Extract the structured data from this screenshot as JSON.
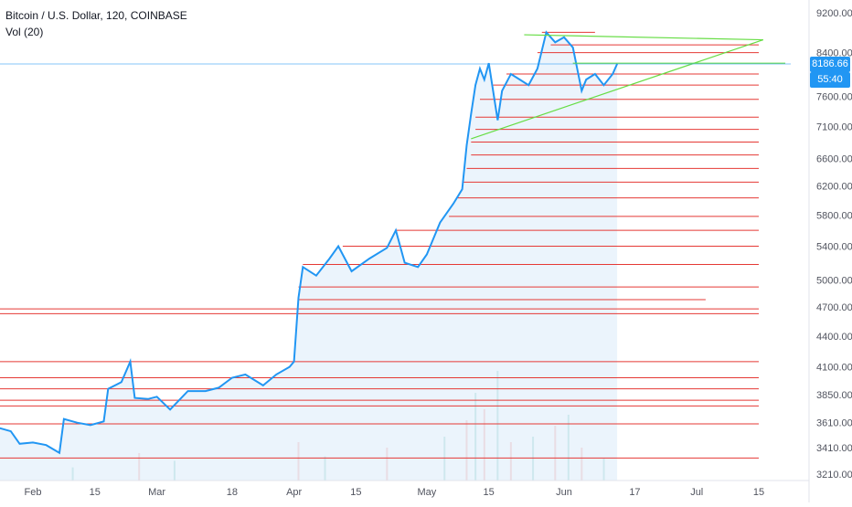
{
  "legend": {
    "title": "Bitcoin / U.S. Dollar, 120, COINBASE",
    "indicator": "Vol (20)"
  },
  "badges": {
    "last_price": "8186.66",
    "countdown": "55:40"
  },
  "colors": {
    "price_line": "#2196f3",
    "area_fill": "#e3f0fb",
    "resistance": "#e53935",
    "trendline": "#66dd44",
    "volume_up": "#26a69a",
    "volume_down": "#ef5350",
    "badge_bg": "#2196f3",
    "axis_text": "#50535e"
  },
  "chart_data": {
    "type": "line",
    "title": "Bitcoin / U.S. Dollar, 120, COINBASE",
    "xlabel": "",
    "ylabel": "",
    "y_scale": "log",
    "ylim": [
      3160,
      9600
    ],
    "y_ticks": [
      3210,
      3410,
      3610,
      3850,
      4100,
      4400,
      4700,
      5000,
      5400,
      5800,
      6200,
      6600,
      7100,
      7600,
      8400,
      9200
    ],
    "x_tick_labels": [
      {
        "label": "Feb",
        "date": "2019-02-01"
      },
      {
        "label": "15",
        "date": "2019-02-15"
      },
      {
        "label": "Mar",
        "date": "2019-03-01"
      },
      {
        "label": "18",
        "date": "2019-03-18"
      },
      {
        "label": "Apr",
        "date": "2019-04-01"
      },
      {
        "label": "15",
        "date": "2019-04-15"
      },
      {
        "label": "May",
        "date": "2019-05-01"
      },
      {
        "label": "15",
        "date": "2019-05-15"
      },
      {
        "label": "Jun",
        "date": "2019-06-01"
      },
      {
        "label": "17",
        "date": "2019-06-17"
      },
      {
        "label": "Jul",
        "date": "2019-07-01"
      },
      {
        "label": "15",
        "date": "2019-07-15"
      }
    ],
    "xlim": [
      "2019-01-21",
      "2019-07-25"
    ],
    "series": [
      {
        "values": [
          {
            "x": "2019-01-21",
            "y": 3610
          },
          {
            "x": "2019-01-24",
            "y": 3570
          },
          {
            "x": "2019-01-27",
            "y": 3540
          },
          {
            "x": "2019-01-29",
            "y": 3440
          },
          {
            "x": "2019-02-01",
            "y": 3450
          },
          {
            "x": "2019-02-04",
            "y": 3430
          },
          {
            "x": "2019-02-07",
            "y": 3370
          },
          {
            "x": "2019-02-08",
            "y": 3640
          },
          {
            "x": "2019-02-11",
            "y": 3610
          },
          {
            "x": "2019-02-14",
            "y": 3590
          },
          {
            "x": "2019-02-17",
            "y": 3620
          },
          {
            "x": "2019-02-18",
            "y": 3900
          },
          {
            "x": "2019-02-21",
            "y": 3960
          },
          {
            "x": "2019-02-23",
            "y": 4150
          },
          {
            "x": "2019-02-24",
            "y": 3820
          },
          {
            "x": "2019-02-27",
            "y": 3810
          },
          {
            "x": "2019-03-01",
            "y": 3830
          },
          {
            "x": "2019-03-04",
            "y": 3720
          },
          {
            "x": "2019-03-08",
            "y": 3880
          },
          {
            "x": "2019-03-12",
            "y": 3880
          },
          {
            "x": "2019-03-15",
            "y": 3910
          },
          {
            "x": "2019-03-18",
            "y": 4000
          },
          {
            "x": "2019-03-21",
            "y": 4030
          },
          {
            "x": "2019-03-25",
            "y": 3930
          },
          {
            "x": "2019-03-28",
            "y": 4030
          },
          {
            "x": "2019-03-31",
            "y": 4100
          },
          {
            "x": "2019-04-01",
            "y": 4150
          },
          {
            "x": "2019-04-02",
            "y": 4800
          },
          {
            "x": "2019-04-03",
            "y": 5150
          },
          {
            "x": "2019-04-06",
            "y": 5050
          },
          {
            "x": "2019-04-09",
            "y": 5250
          },
          {
            "x": "2019-04-11",
            "y": 5400
          },
          {
            "x": "2019-04-14",
            "y": 5100
          },
          {
            "x": "2019-04-18",
            "y": 5250
          },
          {
            "x": "2019-04-22",
            "y": 5380
          },
          {
            "x": "2019-04-24",
            "y": 5600
          },
          {
            "x": "2019-04-26",
            "y": 5200
          },
          {
            "x": "2019-04-29",
            "y": 5150
          },
          {
            "x": "2019-05-01",
            "y": 5300
          },
          {
            "x": "2019-05-04",
            "y": 5700
          },
          {
            "x": "2019-05-07",
            "y": 5950
          },
          {
            "x": "2019-05-09",
            "y": 6150
          },
          {
            "x": "2019-05-10",
            "y": 6800
          },
          {
            "x": "2019-05-11",
            "y": 7300
          },
          {
            "x": "2019-05-12",
            "y": 7800
          },
          {
            "x": "2019-05-13",
            "y": 8100
          },
          {
            "x": "2019-05-14",
            "y": 7900
          },
          {
            "x": "2019-05-15",
            "y": 8200
          },
          {
            "x": "2019-05-17",
            "y": 7200
          },
          {
            "x": "2019-05-18",
            "y": 7700
          },
          {
            "x": "2019-05-20",
            "y": 8000
          },
          {
            "x": "2019-05-22",
            "y": 7900
          },
          {
            "x": "2019-05-24",
            "y": 7800
          },
          {
            "x": "2019-05-26",
            "y": 8100
          },
          {
            "x": "2019-05-28",
            "y": 8800
          },
          {
            "x": "2019-05-30",
            "y": 8600
          },
          {
            "x": "2019-06-01",
            "y": 8700
          },
          {
            "x": "2019-06-03",
            "y": 8500
          },
          {
            "x": "2019-06-05",
            "y": 7700
          },
          {
            "x": "2019-06-06",
            "y": 7900
          },
          {
            "x": "2019-06-08",
            "y": 8000
          },
          {
            "x": "2019-06-10",
            "y": 7800
          },
          {
            "x": "2019-06-12",
            "y": 8000
          },
          {
            "x": "2019-06-13",
            "y": 8187
          }
        ]
      }
    ],
    "horizontal_levels": [
      {
        "y": 8800,
        "x_start": "2019-05-27",
        "x_end": "2019-06-08"
      },
      {
        "y": 8550,
        "x_start": "2019-05-29",
        "x_end": "2019-07-15"
      },
      {
        "y": 8400,
        "x_start": "2019-05-26",
        "x_end": "2019-07-15"
      },
      {
        "y": 8000,
        "x_start": "2019-05-19",
        "x_end": "2019-07-15"
      },
      {
        "y": 7800,
        "x_start": "2019-05-16",
        "x_end": "2019-07-15"
      },
      {
        "y": 7550,
        "x_start": "2019-05-13",
        "x_end": "2019-07-15"
      },
      {
        "y": 7250,
        "x_start": "2019-05-12",
        "x_end": "2019-07-15"
      },
      {
        "y": 7050,
        "x_start": "2019-05-12",
        "x_end": "2019-07-15"
      },
      {
        "y": 6850,
        "x_start": "2019-05-11",
        "x_end": "2019-07-15"
      },
      {
        "y": 6650,
        "x_start": "2019-05-11",
        "x_end": "2019-07-15"
      },
      {
        "y": 6450,
        "x_start": "2019-05-10",
        "x_end": "2019-07-15"
      },
      {
        "y": 6250,
        "x_start": "2019-05-09",
        "x_end": "2019-07-15"
      },
      {
        "y": 6030,
        "x_start": "2019-05-08",
        "x_end": "2019-07-15"
      },
      {
        "y": 5780,
        "x_start": "2019-05-06",
        "x_end": "2019-07-15"
      },
      {
        "y": 5600,
        "x_start": "2019-04-24",
        "x_end": "2019-07-15"
      },
      {
        "y": 5400,
        "x_start": "2019-04-12",
        "x_end": "2019-07-15"
      },
      {
        "y": 5180,
        "x_start": "2019-04-03",
        "x_end": "2019-07-15"
      },
      {
        "y": 4920,
        "x_start": "2019-04-02",
        "x_end": "2019-07-15"
      },
      {
        "y": 4780,
        "x_start": "2019-04-02",
        "x_end": "2019-07-03"
      },
      {
        "y": 4680,
        "x_start": "2019-01-21",
        "x_end": "2019-07-15"
      },
      {
        "y": 4630,
        "x_start": "2019-01-21",
        "x_end": "2019-07-15"
      },
      {
        "y": 4150,
        "x_start": "2019-01-21",
        "x_end": "2019-07-15"
      },
      {
        "y": 4000,
        "x_start": "2019-01-21",
        "x_end": "2019-07-15"
      },
      {
        "y": 3900,
        "x_start": "2019-01-21",
        "x_end": "2019-07-15"
      },
      {
        "y": 3800,
        "x_start": "2019-01-21",
        "x_end": "2019-07-15"
      },
      {
        "y": 3750,
        "x_start": "2019-01-21",
        "x_end": "2019-07-15"
      },
      {
        "y": 3600,
        "x_start": "2019-01-21",
        "x_end": "2019-07-15"
      },
      {
        "y": 3330,
        "x_start": "2019-01-21",
        "x_end": "2019-07-15"
      }
    ],
    "trendlines": [
      {
        "from": {
          "x": "2019-05-23",
          "y": 8750
        },
        "to": {
          "x": "2019-07-16",
          "y": 8650
        }
      },
      {
        "from": {
          "x": "2019-05-11",
          "y": 6900
        },
        "to": {
          "x": "2019-07-16",
          "y": 8650
        }
      },
      {
        "from": {
          "x": "2019-06-03",
          "y": 8200
        },
        "to": {
          "x": "2019-07-21",
          "y": 8200
        }
      }
    ],
    "volume": [
      {
        "x": "2019-02-10",
        "v": 0.12
      },
      {
        "x": "2019-02-25",
        "v": 0.25
      },
      {
        "x": "2019-03-05",
        "v": 0.18
      },
      {
        "x": "2019-04-02",
        "v": 0.35
      },
      {
        "x": "2019-04-08",
        "v": 0.22
      },
      {
        "x": "2019-04-22",
        "v": 0.3
      },
      {
        "x": "2019-05-05",
        "v": 0.4
      },
      {
        "x": "2019-05-10",
        "v": 0.55
      },
      {
        "x": "2019-05-12",
        "v": 0.8
      },
      {
        "x": "2019-05-14",
        "v": 0.65
      },
      {
        "x": "2019-05-17",
        "v": 1.0
      },
      {
        "x": "2019-05-20",
        "v": 0.35
      },
      {
        "x": "2019-05-25",
        "v": 0.4
      },
      {
        "x": "2019-05-30",
        "v": 0.5
      },
      {
        "x": "2019-06-02",
        "v": 0.6
      },
      {
        "x": "2019-06-05",
        "v": 0.3
      },
      {
        "x": "2019-06-10",
        "v": 0.2
      }
    ]
  }
}
